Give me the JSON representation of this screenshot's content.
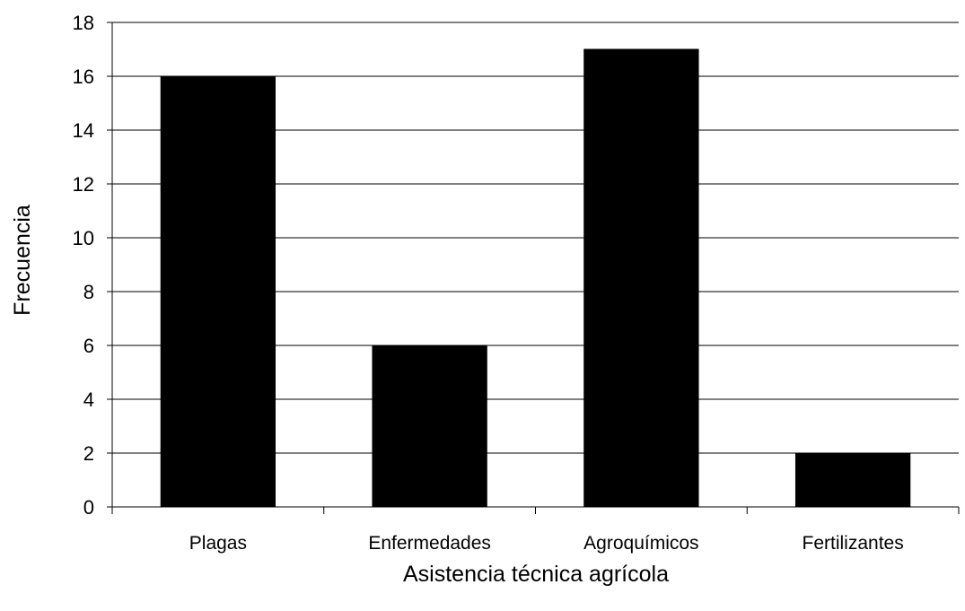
{
  "chart_data": {
    "type": "bar",
    "categories": [
      "Plagas",
      "Enfermedades",
      "Agroquímicos",
      "Fertilizantes"
    ],
    "values": [
      16,
      6,
      17,
      2
    ],
    "title": "",
    "xlabel": "Asistencia técnica agrícola",
    "ylabel": "Frecuencia",
    "ylim": [
      0,
      18
    ],
    "yticks": [
      0,
      2,
      4,
      6,
      8,
      10,
      12,
      14,
      16,
      18
    ],
    "grid": true,
    "bar_color": "#000000",
    "legend": "none"
  }
}
